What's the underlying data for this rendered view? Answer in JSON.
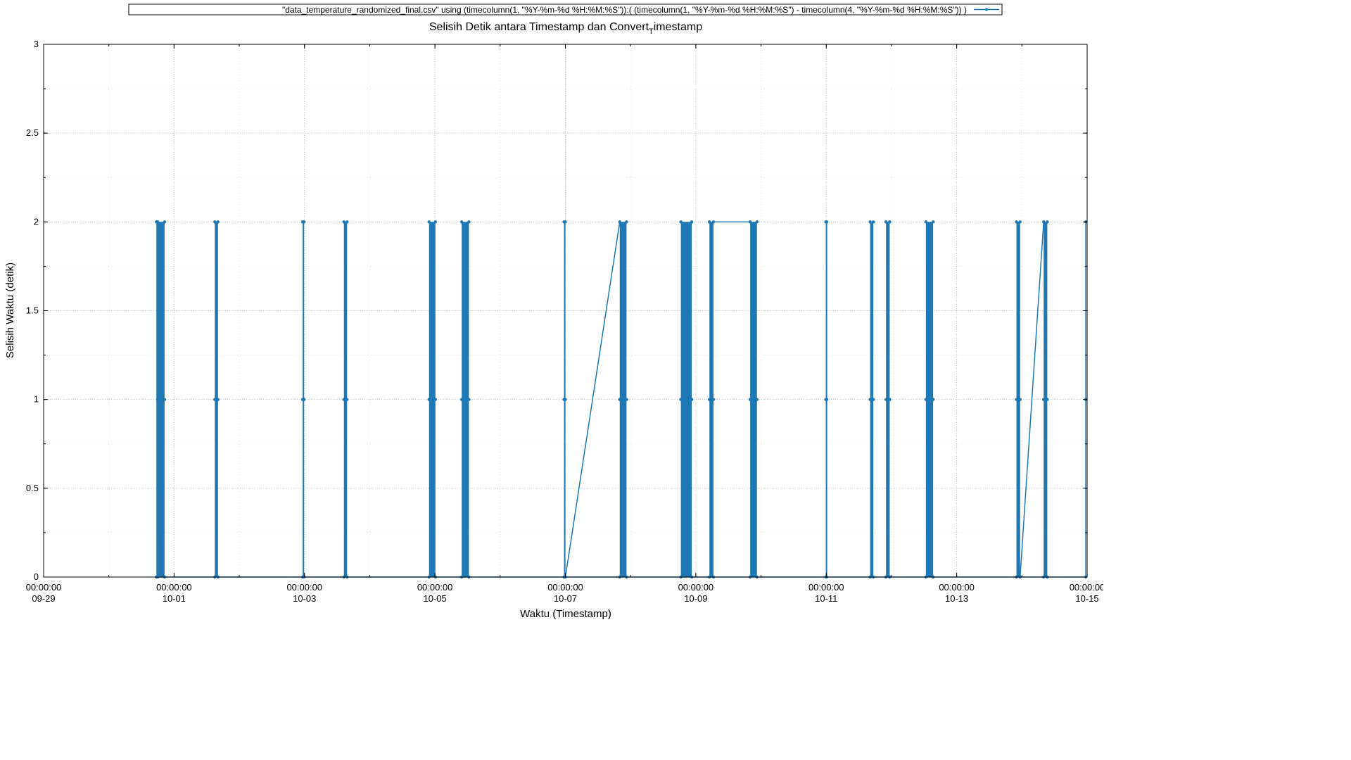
{
  "chart_data": {
    "type": "line",
    "title": "Selisih Detik antara Timestamp dan Convert",
    "title_subscript": "T",
    "title_after_subscript": "imestamp",
    "xlabel": "Waktu (Timestamp)",
    "ylabel": "Selisih Waktu (detik)",
    "legend_placement": "top-center",
    "legend_entry": "\"data_temperature_randomized_final.csv\" using     (timecolumn(1, \"%Y-%m-%d %H:%M:%S\")):( (timecolumn(1, \"%Y-%m-%d %H:%M:%S\") - timecolumn(4, \"%Y-%m-%d %H:%M:%S\")) )",
    "grid": true,
    "series_color": "#1f77b4",
    "x_axis": {
      "type": "date",
      "range": [
        "09-29",
        "10-15"
      ],
      "ticks": [
        {
          "time": "00:00:00",
          "date": "09-29"
        },
        {
          "time": "00:00:00",
          "date": "10-01"
        },
        {
          "time": "00:00:00",
          "date": "10-03"
        },
        {
          "time": "00:00:00",
          "date": "10-05"
        },
        {
          "time": "00:00:00",
          "date": "10-07"
        },
        {
          "time": "00:00:00",
          "date": "10-09"
        },
        {
          "time": "00:00:00",
          "date": "10-11"
        },
        {
          "time": "00:00:00",
          "date": "10-13"
        },
        {
          "time": "00:00:00",
          "date": "10-15"
        }
      ]
    },
    "y_axis": {
      "range": [
        0,
        3
      ],
      "ticks": [
        "0",
        "0.5",
        "1",
        "1.5",
        "2",
        "2.5",
        "3"
      ]
    },
    "bursts": [
      {
        "start": "09-30 17:30",
        "end": "09-30 17:40",
        "values": [
          0,
          2
        ]
      },
      {
        "start": "09-30 18:00",
        "end": "09-30 20:30",
        "values": [
          0,
          1,
          2
        ]
      },
      {
        "start": "10-01 15:00",
        "end": "10-01 16:10",
        "values": [
          0,
          1,
          2
        ]
      },
      {
        "start": "10-02 23:20",
        "end": "10-02 23:50",
        "values": [
          0,
          1,
          2
        ]
      },
      {
        "start": "10-03 14:30",
        "end": "10-03 15:40",
        "values": [
          0,
          1,
          2
        ]
      },
      {
        "start": "10-04 21:50",
        "end": "10-05 00:10",
        "values": [
          0,
          1,
          2
        ]
      },
      {
        "start": "10-05 09:50",
        "end": "10-05 12:30",
        "values": [
          0,
          1,
          2
        ]
      },
      {
        "start": "10-06 23:30",
        "end": "10-07 00:00",
        "values": [
          0,
          1,
          2
        ]
      },
      {
        "start": "10-07 20:00",
        "end": "10-07 22:30",
        "values": [
          0,
          1,
          2
        ]
      },
      {
        "start": "10-08 18:30",
        "end": "10-08 22:30",
        "values": [
          0,
          1,
          2
        ]
      },
      {
        "start": "10-09 05:00",
        "end": "10-09 06:30",
        "values": [
          0,
          1,
          2
        ]
      },
      {
        "start": "10-09 20:00",
        "end": "10-09 22:30",
        "values": [
          0,
          1,
          2
        ]
      },
      {
        "start": "10-10 23:50",
        "end": "10-11 00:10",
        "values": [
          0,
          1,
          2
        ]
      },
      {
        "start": "10-11 16:10",
        "end": "10-11 17:20",
        "values": [
          0,
          1,
          2
        ]
      },
      {
        "start": "10-11 22:00",
        "end": "10-11 23:20",
        "values": [
          0,
          1,
          2
        ]
      },
      {
        "start": "10-12 12:40",
        "end": "10-12 15:20",
        "values": [
          0,
          1,
          2
        ]
      },
      {
        "start": "10-13 22:00",
        "end": "10-13 23:20",
        "values": [
          0,
          1,
          2
        ]
      },
      {
        "start": "10-14 08:00",
        "end": "10-14 09:20",
        "values": [
          0,
          1,
          2
        ]
      }
    ],
    "connectors": [
      {
        "from": {
          "x": "09-30 17:50",
          "y": 0
        },
        "to": {
          "x": "09-30 18:00",
          "y": 2
        }
      },
      {
        "from": {
          "x": "10-07 00:00",
          "y": 0
        },
        "to": {
          "x": "10-07 20:00",
          "y": 2
        }
      },
      {
        "from": {
          "x": "10-09 06:30",
          "y": 2
        },
        "to": {
          "x": "10-09 20:00",
          "y": 2
        }
      },
      {
        "from": {
          "x": "10-13 23:20",
          "y": 0
        },
        "to": {
          "x": "10-14 08:00",
          "y": 2
        }
      },
      {
        "from": {
          "x": "09-30 17:30",
          "y": 0
        },
        "to": {
          "x": "10-14 23:30",
          "y": 0
        }
      }
    ],
    "points": [
      {
        "x": "10-14 23:30",
        "y": 0
      },
      {
        "x": "10-14 23:30",
        "y": 1
      },
      {
        "x": "10-14 23:30",
        "y": 2
      }
    ]
  }
}
